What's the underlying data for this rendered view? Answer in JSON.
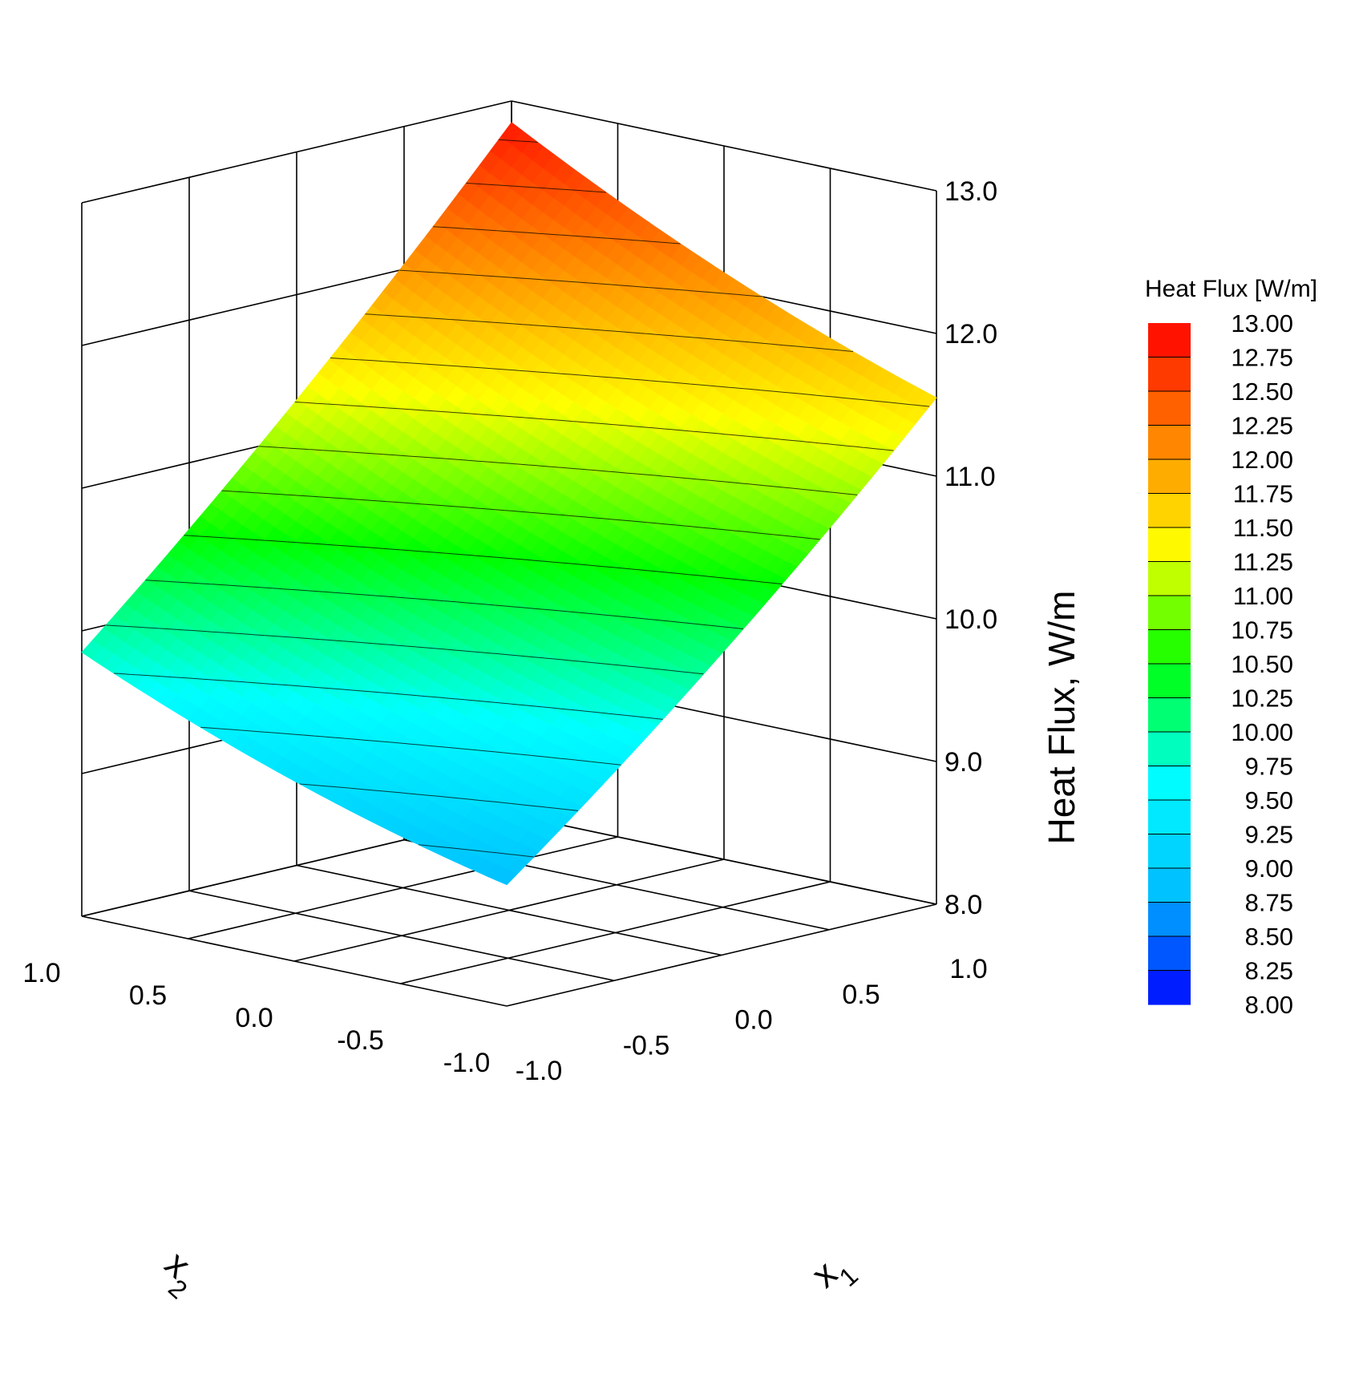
{
  "chart_data": {
    "type": "surface3d",
    "x1": {
      "label_letter": "x",
      "label_sub": "1",
      "ticks": [
        -1.0,
        -0.5,
        0.0,
        0.5,
        1.0
      ],
      "tick_labels": [
        "-1.0",
        "-0.5",
        "0.0",
        "0.5",
        "1.0"
      ],
      "range": [
        -1,
        1
      ]
    },
    "x2": {
      "label_letter": "x",
      "label_sub": "2",
      "ticks": [
        -1.0,
        -0.5,
        0.0,
        0.5,
        1.0
      ],
      "tick_labels": [
        "-1.0",
        "-0.5",
        "0.0",
        "0.5",
        "1.0"
      ],
      "range": [
        -1,
        1
      ]
    },
    "z": {
      "label": "Heat Flux, W/m",
      "ticks": [
        8.0,
        9.0,
        10.0,
        11.0,
        12.0,
        13.0
      ],
      "tick_labels": [
        "8.0",
        "9.0",
        "10.0",
        "11.0",
        "12.0",
        "13.0"
      ],
      "range": [
        8,
        13
      ]
    },
    "corner_values": [
      {
        "x1": -1,
        "x2": -1,
        "value": 8.85
      },
      {
        "x1": -1,
        "x2": 1,
        "value": 9.85
      },
      {
        "x1": 1,
        "x2": -1,
        "value": 11.55
      },
      {
        "x1": 1,
        "x2": 1,
        "value": 12.85
      }
    ],
    "center_value": 10.6,
    "colorbar": {
      "title": "Heat Flux [W/m]",
      "levels": [
        "13.00",
        "12.75",
        "12.50",
        "12.25",
        "12.00",
        "11.75",
        "11.50",
        "11.25",
        "11.00",
        "10.75",
        "10.50",
        "10.25",
        "10.00",
        "9.75",
        "9.50",
        "9.25",
        "9.00",
        "8.75",
        "8.50",
        "8.25",
        "8.00"
      ],
      "min": 8,
      "max": 13,
      "step": 0.25,
      "colormap": [
        "#0000ff",
        "#00bfff",
        "#00ffff",
        "#00ff00",
        "#ffff00",
        "#ff8000",
        "#ff0000"
      ]
    },
    "contours": true,
    "grid": true
  }
}
